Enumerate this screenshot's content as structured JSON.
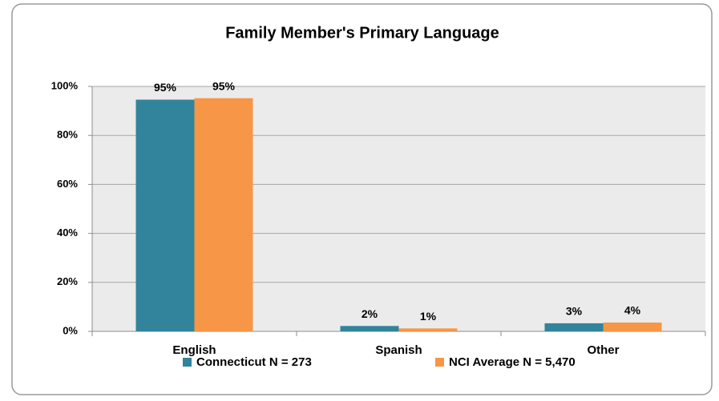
{
  "chart_data": {
    "type": "bar",
    "title": "Family Member's Primary Language",
    "categories": [
      "English",
      "Spanish",
      "Other"
    ],
    "series": [
      {
        "name": "Connecticut N = 273",
        "color": "#31849b",
        "values": [
          94.6,
          2.2,
          3.3
        ],
        "value_labels": [
          "95%",
          "2%",
          "3%"
        ]
      },
      {
        "name": "NCI Average N = 5,470",
        "color": "#f79646",
        "values": [
          95.2,
          1.2,
          3.6
        ],
        "value_labels": [
          "95%",
          "1%",
          "4%"
        ]
      }
    ],
    "ylim": [
      0,
      100
    ],
    "yticks": [
      {
        "value": 0,
        "label": "0%"
      },
      {
        "value": 20,
        "label": "20%"
      },
      {
        "value": 40,
        "label": "40%"
      },
      {
        "value": 60,
        "label": "60%"
      },
      {
        "value": 80,
        "label": "80%"
      },
      {
        "value": 100,
        "label": "100%"
      }
    ],
    "grid": true,
    "legend": "bottom"
  }
}
